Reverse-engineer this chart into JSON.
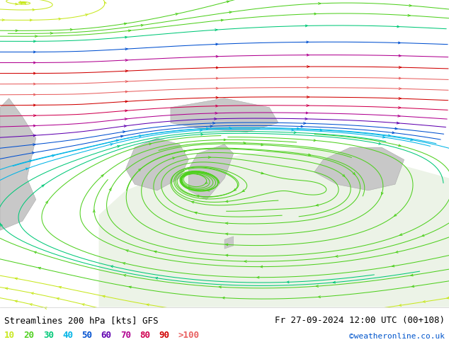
{
  "title_left": "Streamlines 200 hPa [kts] GFS",
  "title_right": "Fr 27-09-2024 12:00 UTC (00+108)",
  "credit": "©weatheronline.co.uk",
  "bg_color": "#b8e878",
  "land_grey": "#d0d0d0",
  "ocean_grey": "#e8e8e8",
  "legend_labels": [
    "10",
    "20",
    "30",
    "40",
    "50",
    "60",
    "70",
    "80",
    "90",
    ">100"
  ],
  "legend_colors": [
    "#c8e820",
    "#50d020",
    "#00c878",
    "#00b4e6",
    "#0050d0",
    "#6000b0",
    "#b00090",
    "#d00050",
    "#d00000",
    "#e86060"
  ],
  "figsize": [
    6.34,
    4.9
  ],
  "dpi": 100
}
